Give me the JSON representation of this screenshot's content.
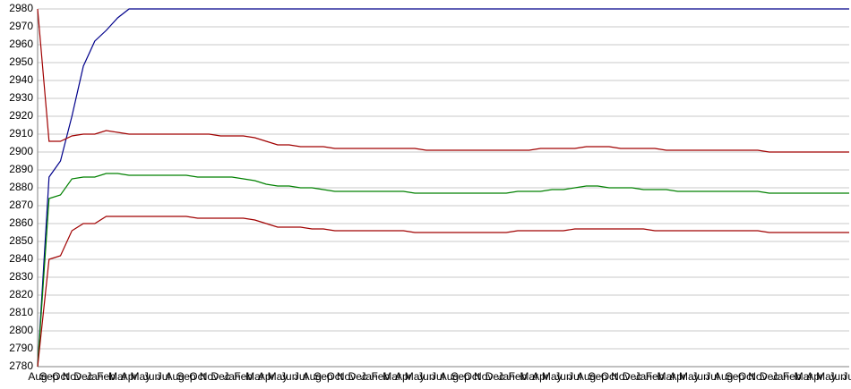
{
  "chart_data": {
    "type": "line",
    "categories": [
      "Aug",
      "Sep",
      "Oct",
      "Nov",
      "Dec",
      "Jan",
      "Feb",
      "Mar",
      "Apr",
      "May",
      "Jun",
      "Jul",
      "Aug",
      "Sep",
      "Oct",
      "Nov",
      "Dec",
      "Jan",
      "Feb",
      "Mar",
      "Apr",
      "May",
      "Jun",
      "Jul",
      "Aug",
      "Sep",
      "Oct",
      "Nov",
      "Dec",
      "Jan",
      "Feb",
      "Mar",
      "Apr",
      "May",
      "Jun",
      "Jul",
      "Aug",
      "Sep",
      "Oct",
      "Nov",
      "Dec",
      "Jan",
      "Feb",
      "Mar",
      "Apr",
      "May",
      "Jun",
      "Jul",
      "Aug",
      "Sep",
      "Oct",
      "Nov",
      "Dec",
      "Jan",
      "Feb",
      "Mar",
      "Apr",
      "May",
      "Jun",
      "Jul",
      "Aug",
      "Sep",
      "Oct",
      "Nov",
      "Dec",
      "Jan",
      "Feb",
      "Mar",
      "Apr",
      "May",
      "Jun",
      "Jul"
    ],
    "series": [
      {
        "color": "#00008b",
        "values": [
          2780,
          2886,
          2895,
          2920,
          2948,
          2962,
          2968,
          2975,
          2980,
          2980,
          2980,
          2980,
          2980,
          2980,
          2980,
          2980,
          2980,
          2980,
          2980,
          2980,
          2980,
          2980,
          2980,
          2980,
          2980,
          2980,
          2980,
          2980,
          2980,
          2980,
          2980,
          2980,
          2980,
          2980,
          2980,
          2980,
          2980,
          2980,
          2980,
          2980,
          2980,
          2980,
          2980,
          2980,
          2980,
          2980,
          2980,
          2980,
          2980,
          2980,
          2980,
          2980,
          2980,
          2980,
          2980,
          2980,
          2980,
          2980,
          2980,
          2980,
          2980,
          2980,
          2980,
          2980,
          2980,
          2980,
          2980,
          2980,
          2980,
          2980,
          2980,
          2980
        ]
      },
      {
        "color": "#a00000",
        "values": [
          2980,
          2906,
          2906,
          2909,
          2910,
          2910,
          2912,
          2911,
          2910,
          2910,
          2910,
          2910,
          2910,
          2910,
          2910,
          2910,
          2909,
          2909,
          2909,
          2908,
          2906,
          2904,
          2904,
          2903,
          2903,
          2903,
          2902,
          2902,
          2902,
          2902,
          2902,
          2902,
          2902,
          2902,
          2901,
          2901,
          2901,
          2901,
          2901,
          2901,
          2901,
          2901,
          2901,
          2901,
          2902,
          2902,
          2902,
          2902,
          2903,
          2903,
          2903,
          2902,
          2902,
          2902,
          2902,
          2901,
          2901,
          2901,
          2901,
          2901,
          2901,
          2901,
          2901,
          2901,
          2900,
          2900,
          2900,
          2900,
          2900,
          2900,
          2900,
          2900
        ]
      },
      {
        "color": "#008000",
        "values": [
          2780,
          2874,
          2876,
          2885,
          2886,
          2886,
          2888,
          2888,
          2887,
          2887,
          2887,
          2887,
          2887,
          2887,
          2886,
          2886,
          2886,
          2886,
          2885,
          2884,
          2882,
          2881,
          2881,
          2880,
          2880,
          2879,
          2878,
          2878,
          2878,
          2878,
          2878,
          2878,
          2878,
          2877,
          2877,
          2877,
          2877,
          2877,
          2877,
          2877,
          2877,
          2877,
          2878,
          2878,
          2878,
          2879,
          2879,
          2880,
          2881,
          2881,
          2880,
          2880,
          2880,
          2879,
          2879,
          2879,
          2878,
          2878,
          2878,
          2878,
          2878,
          2878,
          2878,
          2878,
          2877,
          2877,
          2877,
          2877,
          2877,
          2877,
          2877,
          2877
        ]
      },
      {
        "color": "#a00000",
        "values": [
          2780,
          2840,
          2842,
          2856,
          2860,
          2860,
          2864,
          2864,
          2864,
          2864,
          2864,
          2864,
          2864,
          2864,
          2863,
          2863,
          2863,
          2863,
          2863,
          2862,
          2860,
          2858,
          2858,
          2858,
          2857,
          2857,
          2856,
          2856,
          2856,
          2856,
          2856,
          2856,
          2856,
          2855,
          2855,
          2855,
          2855,
          2855,
          2855,
          2855,
          2855,
          2855,
          2856,
          2856,
          2856,
          2856,
          2856,
          2857,
          2857,
          2857,
          2857,
          2857,
          2857,
          2857,
          2856,
          2856,
          2856,
          2856,
          2856,
          2856,
          2856,
          2856,
          2856,
          2856,
          2855,
          2855,
          2855,
          2855,
          2855,
          2855,
          2855,
          2855
        ]
      }
    ],
    "ylim": [
      2780,
      2980
    ],
    "yticks": [
      2780,
      2790,
      2800,
      2810,
      2820,
      2830,
      2840,
      2850,
      2860,
      2870,
      2880,
      2890,
      2900,
      2910,
      2920,
      2930,
      2940,
      2950,
      2960,
      2970,
      2980
    ],
    "grid": true
  }
}
